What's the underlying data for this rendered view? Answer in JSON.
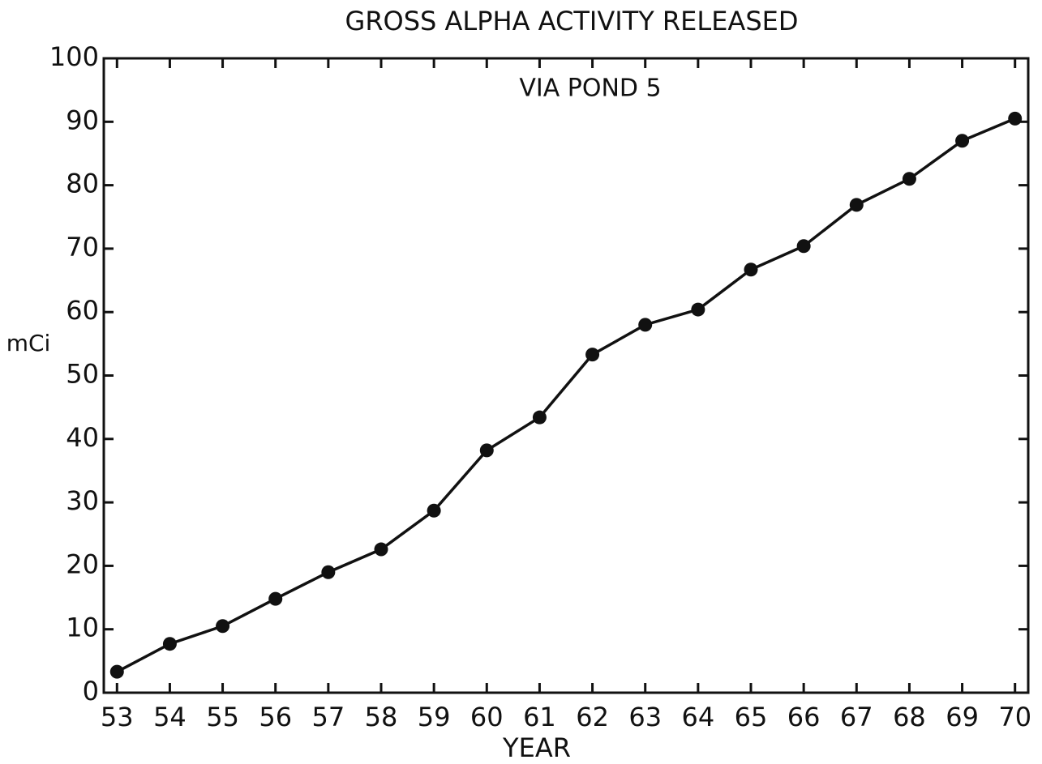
{
  "chart_data": {
    "type": "line",
    "title": "GROSS ALPHA ACTIVITY RELEASED",
    "annotation": "VIA POND 5",
    "x_label": "YEAR",
    "y_label": "mCi",
    "x": [
      53,
      54,
      55,
      56,
      57,
      58,
      59,
      60,
      61,
      62,
      63,
      64,
      65,
      66,
      67,
      68,
      69,
      70
    ],
    "series": [
      {
        "color": "#111111",
        "values": [
          3.3,
          7.7,
          10.5,
          14.8,
          19,
          22.6,
          28.7,
          38.2,
          43.4,
          53.3,
          58,
          60.4,
          66.7,
          70.4,
          76.9,
          81,
          87,
          90.5
        ]
      }
    ],
    "xlim": [
      52.75,
      70.25
    ],
    "xticks": [
      53,
      54,
      55,
      56,
      57,
      58,
      59,
      60,
      61,
      62,
      63,
      64,
      65,
      66,
      67,
      68,
      69,
      70
    ],
    "ylim": [
      0,
      100
    ],
    "yticks": [
      0,
      10,
      20,
      30,
      40,
      50,
      60,
      70,
      80,
      90,
      100
    ],
    "grid": false
  }
}
